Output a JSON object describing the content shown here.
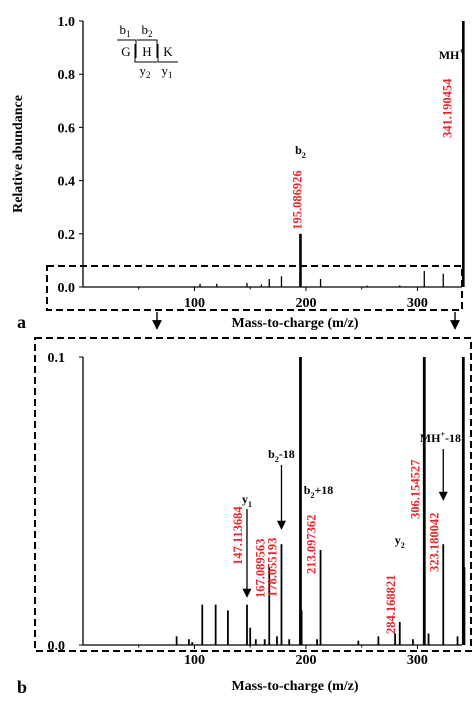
{
  "colors": {
    "annotation": "#e8262b",
    "peak": "#000000",
    "frame": "#000000"
  },
  "chart_data": [
    {
      "type": "bar",
      "panel_label": "a",
      "ylabel": "Relative abundance",
      "xlabel": "Mass-to-charge (m/z)",
      "xlim": [
        0,
        340
      ],
      "ylim": [
        0,
        1.0
      ],
      "xticks": [
        "100",
        "200",
        "300"
      ],
      "yticks": [
        "0.0",
        "0.2",
        "0.4",
        "0.6",
        "0.8",
        "1.0"
      ],
      "peaks": [
        {
          "mz": 341.190454,
          "y": 1.0
        },
        {
          "mz": 195.086926,
          "y": 0.2
        },
        {
          "mz": 167.089563,
          "y": 0.03
        },
        {
          "mz": 178.055193,
          "y": 0.04
        },
        {
          "mz": 213.097362,
          "y": 0.03
        },
        {
          "mz": 306.154527,
          "y": 0.06
        },
        {
          "mz": 323.180042,
          "y": 0.05
        },
        {
          "mz": 147.113684,
          "y": 0.015
        },
        {
          "mz": 160,
          "y": 0.01
        },
        {
          "mz": 120,
          "y": 0.012
        },
        {
          "mz": 105,
          "y": 0.012
        },
        {
          "mz": 284.168821,
          "y": 0.006
        },
        {
          "mz": 255,
          "y": 0.005
        }
      ],
      "annotations": [
        {
          "mz": 195.086926,
          "y": 0.2,
          "label": "195.086926",
          "ion": "b",
          "sub": "2",
          "sup": "",
          "suffix": ""
        },
        {
          "mz": 341.190454,
          "y": 1.0,
          "label": "341.190454",
          "ion": "MH",
          "sub": "",
          "sup": "+",
          "suffix": ""
        }
      ],
      "sequence": {
        "residues": [
          "G",
          "H",
          "K"
        ],
        "b_ions": [
          {
            "ion": "b",
            "sub": "1"
          },
          {
            "ion": "b",
            "sub": "2"
          }
        ],
        "y_ions": [
          {
            "ion": "y",
            "sub": "2"
          },
          {
            "ion": "y",
            "sub": "1"
          }
        ]
      }
    },
    {
      "type": "bar",
      "panel_label": "b",
      "xlabel": "Mass-to-charge (m/z)",
      "xlim": [
        0,
        340
      ],
      "ylim": [
        0,
        0.1
      ],
      "xticks": [
        "100",
        "200",
        "300"
      ],
      "yticks": [
        "0.0",
        "0.1"
      ],
      "peaks": [
        {
          "mz": 341.190454,
          "y": 0.1
        },
        {
          "mz": 195.086926,
          "y": 0.1
        },
        {
          "mz": 306.154527,
          "y": 0.1
        },
        {
          "mz": 342.19,
          "y": 0.027
        },
        {
          "mz": 323.180042,
          "y": 0.035
        },
        {
          "mz": 213.097362,
          "y": 0.033
        },
        {
          "mz": 178.055193,
          "y": 0.035
        },
        {
          "mz": 167.089563,
          "y": 0.027
        },
        {
          "mz": 147.113684,
          "y": 0.014
        },
        {
          "mz": 284.168821,
          "y": 0.008
        },
        {
          "mz": 196.09,
          "y": 0.012
        },
        {
          "mz": 107,
          "y": 0.014
        },
        {
          "mz": 119,
          "y": 0.014
        },
        {
          "mz": 130,
          "y": 0.012
        },
        {
          "mz": 150,
          "y": 0.006
        },
        {
          "mz": 84,
          "y": 0.003
        },
        {
          "mz": 95,
          "y": 0.002
        },
        {
          "mz": 98,
          "y": 0.001
        },
        {
          "mz": 155,
          "y": 0.002
        },
        {
          "mz": 163,
          "y": 0.002
        },
        {
          "mz": 174,
          "y": 0.003
        },
        {
          "mz": 185,
          "y": 0.002
        },
        {
          "mz": 210,
          "y": 0.002
        },
        {
          "mz": 247,
          "y": 0.0015
        },
        {
          "mz": 265,
          "y": 0.003
        },
        {
          "mz": 280,
          "y": 0.004
        },
        {
          "mz": 296,
          "y": 0.002
        },
        {
          "mz": 310,
          "y": 0.004
        },
        {
          "mz": 336,
          "y": 0.003
        }
      ],
      "annotations": [
        {
          "mz": 147.113684,
          "y": 0.014,
          "label": "147.113684",
          "ion": "y",
          "sub": "1",
          "sup": "",
          "suffix": ""
        },
        {
          "mz": 167.089563,
          "y": 0.027,
          "label": "167.089563",
          "ion": "",
          "sub": "",
          "sup": "",
          "suffix": ""
        },
        {
          "mz": 178.055193,
          "y": 0.035,
          "label": "178.055193",
          "ion": "b",
          "sub": "2",
          "sup": "",
          "suffix": "-18"
        },
        {
          "mz": 213.097362,
          "y": 0.033,
          "label": "213.097362",
          "ion": "b",
          "sub": "2",
          "sup": "",
          "suffix": "+18"
        },
        {
          "mz": 284.168821,
          "y": 0.008,
          "label": "284.168821",
          "ion": "y",
          "sub": "2",
          "sup": "",
          "suffix": ""
        },
        {
          "mz": 306.154527,
          "y": 0.1,
          "label": "306.154527",
          "ion": "",
          "sub": "",
          "sup": "",
          "suffix": ""
        },
        {
          "mz": 323.180042,
          "y": 0.035,
          "label": "323.180042",
          "ion": "MH",
          "sub": "",
          "sup": "+",
          "suffix": "-18"
        }
      ]
    }
  ]
}
